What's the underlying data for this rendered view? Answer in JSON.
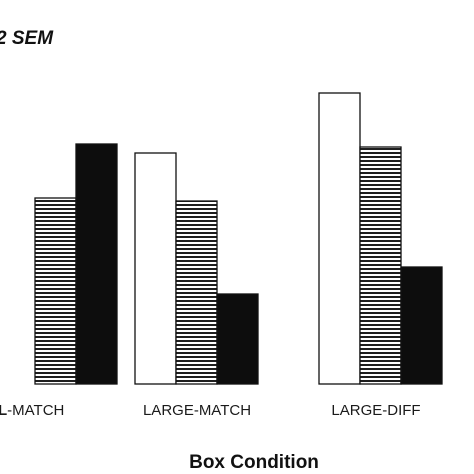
{
  "annotation": "2 SEM",
  "chart_data": {
    "type": "bar",
    "xlabel": "Box Condition",
    "ylabel": "",
    "ylim": [
      0,
      100
    ],
    "grid": false,
    "categories": [
      {
        "prefix": "L",
        "rest": "-MATCH"
      },
      {
        "prefix": "",
        "rest": "LARGE-MATCH"
      },
      {
        "prefix": "",
        "rest": "LARGE-DIFF"
      }
    ],
    "series": [
      {
        "fill": "white",
        "values": [
          null,
          77,
          97
        ]
      },
      {
        "fill": "striped",
        "values": [
          62,
          61,
          79
        ]
      },
      {
        "fill": "black",
        "values": [
          80,
          30,
          39
        ]
      }
    ]
  }
}
